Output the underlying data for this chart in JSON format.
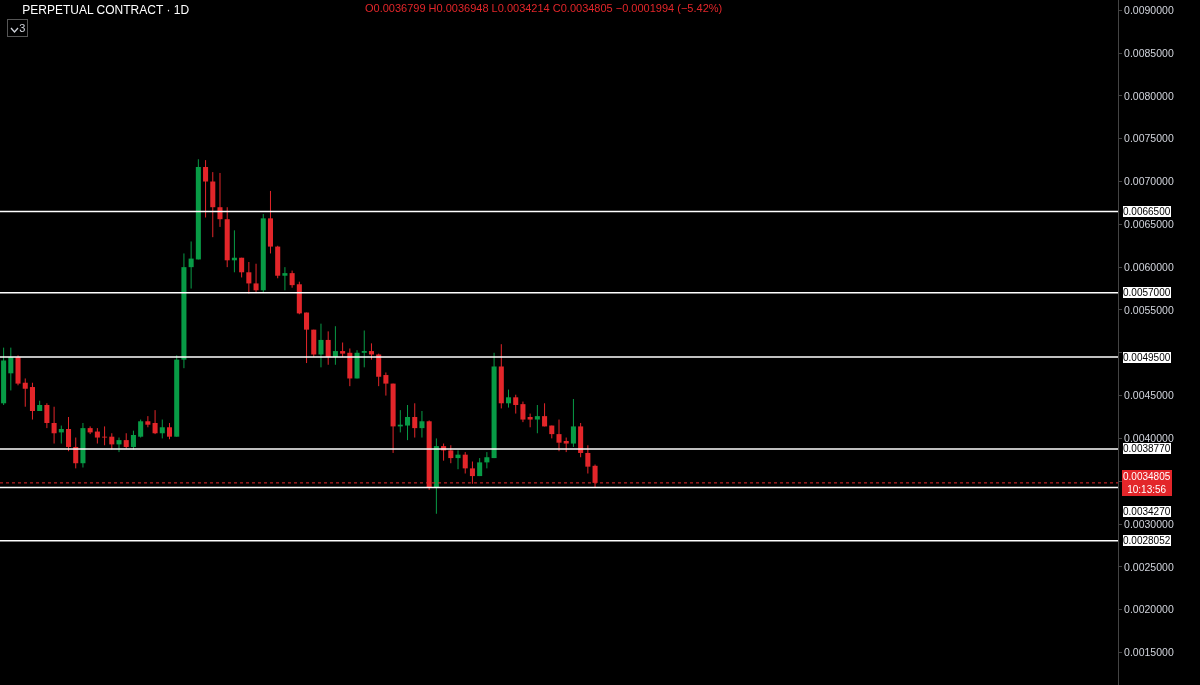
{
  "chart_data": {
    "type": "candlestick",
    "title": "PERPETUAL CONTRACT · 1D",
    "annotations": [
      "O0.0036799 H0.0036948 L0.0034214 C0.0034805 −0.0001994 (−5.42%)",
      "3"
    ],
    "categories": [
      null,
      null,
      null,
      null,
      null,
      null,
      null,
      null,
      null,
      null,
      null,
      null,
      null,
      null,
      null,
      null,
      null,
      null,
      null,
      null,
      null,
      null,
      null,
      null,
      null,
      null,
      null,
      null,
      null,
      null,
      null,
      null,
      null,
      null,
      null,
      null,
      null,
      null,
      null,
      null,
      null,
      null,
      null,
      null,
      null,
      null,
      null,
      null,
      null,
      null,
      null,
      null,
      null,
      null,
      null,
      null,
      null,
      null,
      null,
      null,
      null,
      null,
      null,
      null,
      null,
      null,
      null,
      null,
      null,
      null,
      null,
      null,
      null,
      null,
      null,
      null,
      null,
      null,
      null,
      null,
      null,
      null,
      null,
      null,
      null,
      null,
      null,
      null,
      null,
      null,
      null,
      null,
      null,
      null,
      null,
      null,
      null,
      null,
      null,
      null,
      null,
      null,
      null,
      null,
      null,
      null,
      null,
      null,
      null,
      null,
      null,
      null,
      null,
      null,
      null,
      null,
      null,
      null,
      null,
      null,
      null,
      null,
      null,
      null,
      null,
      null,
      null,
      null,
      null,
      null,
      null,
      null,
      null,
      null,
      null,
      null,
      null,
      null,
      null,
      null,
      null,
      null,
      null,
      null,
      null,
      null,
      null,
      null,
      null,
      null,
      null,
      null,
      null,
      null,
      null
    ],
    "ohlc": [
      [
        0.00441,
        0.00506,
        0.00439,
        0.00491
      ],
      [
        0.00476,
        0.00506,
        0.00456,
        0.00495
      ],
      [
        0.00495,
        0.00497,
        0.00462,
        0.00464
      ],
      [
        0.00465,
        0.0047,
        0.00437,
        0.00458
      ],
      [
        0.0046,
        0.00465,
        0.00422,
        0.00432
      ],
      [
        0.00432,
        0.00444,
        0.00432,
        0.00439
      ],
      [
        0.00439,
        0.00441,
        0.00412,
        0.00418
      ],
      [
        0.00418,
        0.00437,
        0.00394,
        0.00406
      ],
      [
        0.00407,
        0.00415,
        0.00394,
        0.00411
      ],
      [
        0.00411,
        0.00425,
        0.00385,
        0.0039
      ],
      [
        0.0039,
        0.00401,
        0.00365,
        0.00371
      ],
      [
        0.00371,
        0.00418,
        0.00366,
        0.00412
      ],
      [
        0.00412,
        0.00414,
        0.00405,
        0.00407
      ],
      [
        0.00408,
        0.00412,
        0.00394,
        0.00401
      ],
      [
        0.00402,
        0.00414,
        0.00392,
        0.00401
      ],
      [
        0.00402,
        0.00406,
        0.00387,
        0.00393
      ],
      [
        0.00393,
        0.00401,
        0.00384,
        0.00398
      ],
      [
        0.00398,
        0.00406,
        0.00388,
        0.0039
      ],
      [
        0.0039,
        0.00409,
        0.00387,
        0.00404
      ],
      [
        0.00402,
        0.00422,
        0.00401,
        0.0042
      ],
      [
        0.0042,
        0.00426,
        0.00413,
        0.00416
      ],
      [
        0.00418,
        0.00433,
        0.00405,
        0.00406
      ],
      [
        0.00406,
        0.00422,
        0.004,
        0.00413
      ],
      [
        0.00413,
        0.00418,
        0.00399,
        0.00402
      ],
      [
        0.00402,
        0.00497,
        0.00402,
        0.00492
      ],
      [
        0.00492,
        0.00616,
        0.00482,
        0.006
      ],
      [
        0.006,
        0.0063,
        0.00575,
        0.0061
      ],
      [
        0.00609,
        0.00726,
        0.00609,
        0.00717
      ],
      [
        0.00717,
        0.00725,
        0.00658,
        0.007
      ],
      [
        0.007,
        0.00711,
        0.00635,
        0.0067
      ],
      [
        0.0067,
        0.0071,
        0.00647,
        0.00656
      ],
      [
        0.00656,
        0.0067,
        0.006,
        0.00608
      ],
      [
        0.00608,
        0.00643,
        0.00594,
        0.00611
      ],
      [
        0.00611,
        0.00611,
        0.00588,
        0.00594
      ],
      [
        0.00594,
        0.00606,
        0.00569,
        0.00581
      ],
      [
        0.00581,
        0.00604,
        0.00571,
        0.00573
      ],
      [
        0.00573,
        0.00662,
        0.00571,
        0.00657
      ],
      [
        0.00657,
        0.00689,
        0.00616,
        0.00624
      ],
      [
        0.00624,
        0.00625,
        0.00587,
        0.0059
      ],
      [
        0.0059,
        0.006,
        0.00573,
        0.00593
      ],
      [
        0.00593,
        0.00596,
        0.00576,
        0.00579
      ],
      [
        0.0058,
        0.00583,
        0.00545,
        0.00546
      ],
      [
        0.00547,
        0.00547,
        0.00488,
        0.00527
      ],
      [
        0.00527,
        0.00527,
        0.00495,
        0.00498
      ],
      [
        0.00498,
        0.00534,
        0.00483,
        0.00515
      ],
      [
        0.00515,
        0.00525,
        0.00486,
        0.00495
      ],
      [
        0.00495,
        0.00531,
        0.00486,
        0.00502
      ],
      [
        0.00502,
        0.00512,
        0.00495,
        0.00499
      ],
      [
        0.005,
        0.00505,
        0.00461,
        0.0047
      ],
      [
        0.0047,
        0.00503,
        0.0047,
        0.005
      ],
      [
        0.005,
        0.00526,
        0.00483,
        0.00502
      ],
      [
        0.00502,
        0.00511,
        0.00492,
        0.00498
      ],
      [
        0.00498,
        0.00499,
        0.00461,
        0.00472
      ],
      [
        0.00474,
        0.00477,
        0.0045,
        0.00464
      ],
      [
        0.00464,
        0.00464,
        0.00383,
        0.00414
      ],
      [
        0.00414,
        0.00433,
        0.00407,
        0.00416
      ],
      [
        0.00415,
        0.00439,
        0.00398,
        0.00425
      ],
      [
        0.00425,
        0.00441,
        0.00401,
        0.00412
      ],
      [
        0.00412,
        0.00432,
        0.00401,
        0.0042
      ],
      [
        0.0042,
        0.00421,
        0.0034,
        0.00343
      ],
      [
        0.00343,
        0.004,
        0.00312,
        0.00391
      ],
      [
        0.00391,
        0.00394,
        0.00374,
        0.00386
      ],
      [
        0.00386,
        0.00392,
        0.00371,
        0.00377
      ],
      [
        0.00377,
        0.00386,
        0.00364,
        0.00381
      ],
      [
        0.00381,
        0.00384,
        0.00359,
        0.00365
      ],
      [
        0.00365,
        0.00373,
        0.00347,
        0.00356
      ],
      [
        0.00356,
        0.00377,
        0.00356,
        0.00372
      ],
      [
        0.00372,
        0.00384,
        0.00365,
        0.00378
      ],
      [
        0.00377,
        0.005,
        0.00377,
        0.00484
      ],
      [
        0.00484,
        0.0051,
        0.00435,
        0.00441
      ],
      [
        0.00441,
        0.00457,
        0.00436,
        0.00448
      ],
      [
        0.00448,
        0.00451,
        0.00429,
        0.00439
      ],
      [
        0.0044,
        0.00443,
        0.00419,
        0.00422
      ],
      [
        0.00425,
        0.00429,
        0.00413,
        0.00422
      ],
      [
        0.00422,
        0.00439,
        0.00406,
        0.00426
      ],
      [
        0.00426,
        0.00441,
        0.00414,
        0.00414
      ],
      [
        0.00415,
        0.00415,
        0.004,
        0.00405
      ],
      [
        0.00405,
        0.00422,
        0.00385,
        0.00395
      ],
      [
        0.00397,
        0.00401,
        0.00384,
        0.00394
      ],
      [
        0.00394,
        0.00446,
        0.0039,
        0.00414
      ],
      [
        0.00414,
        0.00418,
        0.00378,
        0.00383
      ],
      [
        0.00383,
        0.00392,
        0.00359,
        0.00367
      ],
      [
        0.0036799,
        0.0036948,
        0.0034214,
        0.0034805
      ],
      null,
      null,
      null,
      null,
      null,
      null,
      null,
      null,
      null,
      null,
      null,
      null,
      null,
      null,
      null,
      null,
      null,
      null,
      null,
      null,
      null,
      null,
      null,
      null,
      null,
      null,
      null,
      null,
      null,
      null,
      null,
      null,
      null,
      null,
      null,
      null,
      null,
      null,
      null,
      null,
      null,
      null,
      null,
      null,
      null,
      null,
      null,
      null,
      null,
      null,
      null,
      null,
      null,
      null,
      null,
      null,
      null,
      null,
      null,
      null,
      null,
      null,
      null,
      null,
      null,
      null,
      null,
      null,
      null,
      null,
      null,
      null
    ],
    "ylim": [
      0.00112,
      0.00912
    ],
    "yticks": [
      {
        "value": 0.0015,
        "label": "0.0015000"
      },
      {
        "value": 0.002,
        "label": "0.0020000"
      },
      {
        "value": 0.0025,
        "label": "0.0025000"
      },
      {
        "value": 0.003,
        "label": "0.0030000"
      },
      {
        "value": 0.0035,
        "label": null
      },
      {
        "value": 0.004,
        "label": "0.0040000"
      },
      {
        "value": 0.0045,
        "label": "0.0045000"
      },
      {
        "value": 0.005,
        "label": null
      },
      {
        "value": 0.0055,
        "label": "0.0055000"
      },
      {
        "value": 0.006,
        "label": "0.0060000"
      },
      {
        "value": 0.0065,
        "label": "0.0065000"
      },
      {
        "value": 0.007,
        "label": "0.0070000"
      },
      {
        "value": 0.0075,
        "label": "0.0075000"
      },
      {
        "value": 0.008,
        "label": "0.0080000"
      },
      {
        "value": 0.0085,
        "label": "0.0085000"
      },
      {
        "value": 0.009,
        "label": "0.0090000"
      }
    ],
    "ref_lines": [
      {
        "axis": "y",
        "value": 0.00665,
        "label": "0.0066500",
        "color": "#ffffff"
      },
      {
        "axis": "y",
        "value": 0.0057,
        "label": "0.0057000",
        "color": "#ffffff"
      },
      {
        "axis": "y",
        "value": 0.00495,
        "label": "0.0049500",
        "color": "#ffffff"
      },
      {
        "axis": "y",
        "value": 0.003877,
        "label": "0.0038770",
        "color": "#ffffff"
      },
      {
        "axis": "y",
        "value": 0.003427,
        "label": "0.0034270",
        "color": "#ffffff"
      },
      {
        "axis": "y",
        "value": 0.0028052,
        "label": "0.0028052",
        "color": "#ffffff"
      },
      {
        "axis": "y",
        "value": 0.0034805,
        "label": "0.0034805\n10:13:56",
        "color": "#e3262a",
        "line_style": "dotted"
      }
    ],
    "grid": false,
    "legend": false,
    "tick_labels": "y"
  }
}
